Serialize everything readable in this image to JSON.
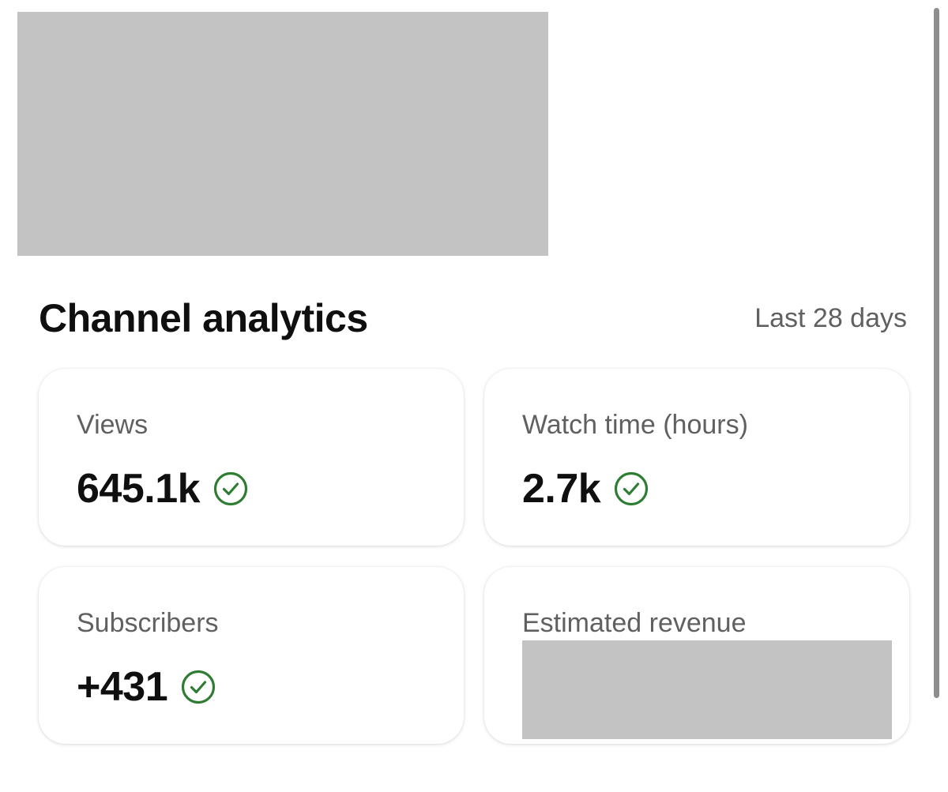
{
  "analytics": {
    "title": "Channel analytics",
    "period": "Last 28 days"
  },
  "cards": [
    {
      "label": "Views",
      "value": "645.1k",
      "status_icon": "check-circle-icon"
    },
    {
      "label": "Watch time (hours)",
      "value": "2.7k",
      "status_icon": "check-circle-icon"
    },
    {
      "label": "Subscribers",
      "value": "+431",
      "status_icon": "check-circle-icon"
    },
    {
      "label": "Estimated revenue",
      "value": ""
    }
  ],
  "colors": {
    "check_green": "#2e7d32",
    "redaction_gray": "#c3c3c3",
    "secondary_text": "#606060"
  }
}
